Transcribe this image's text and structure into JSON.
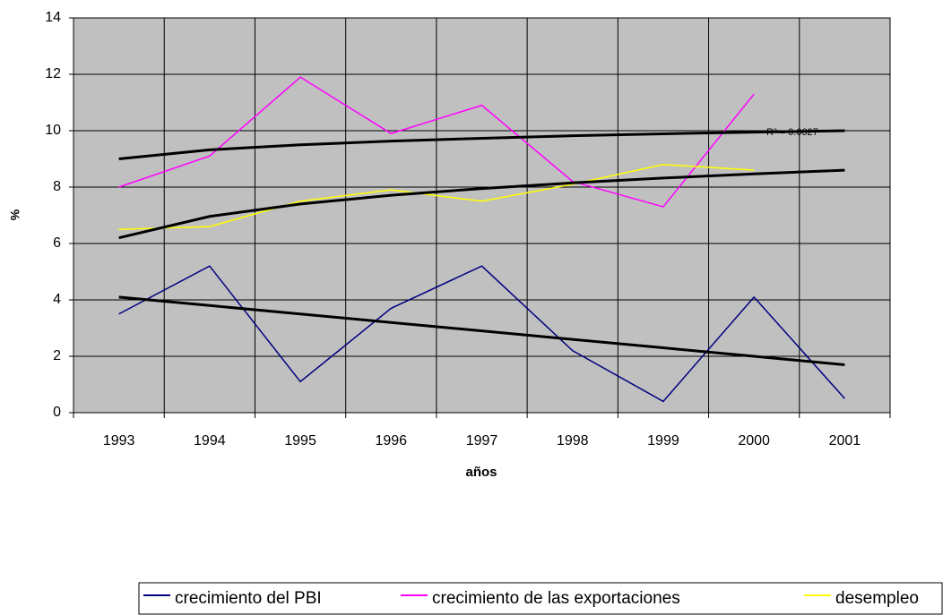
{
  "chart_data": {
    "type": "line",
    "categories": [
      "1993",
      "1994",
      "1995",
      "1996",
      "1997",
      "1998",
      "1999",
      "2000",
      "2001"
    ],
    "series": [
      {
        "name": "crecimiento del PBI",
        "color": "#000080",
        "values": [
          3.5,
          5.2,
          1.1,
          3.7,
          5.2,
          2.2,
          0.4,
          4.1,
          0.5
        ]
      },
      {
        "name": "crecimiento de las exportaciones",
        "color": "#ff00ff",
        "values": [
          8.0,
          9.1,
          11.9,
          9.9,
          10.9,
          8.2,
          7.3,
          11.3,
          null
        ]
      },
      {
        "name": "desempleo",
        "color": "#ffff00",
        "values": [
          6.5,
          6.6,
          7.5,
          7.9,
          7.5,
          8.1,
          8.8,
          8.6,
          null
        ]
      }
    ],
    "trendlines": [
      {
        "color": "#000000",
        "values": [
          4.1,
          3.8,
          3.5,
          3.2,
          2.9,
          2.6,
          2.3,
          2.0,
          1.7
        ]
      },
      {
        "color": "#000000",
        "values": [
          6.2,
          6.96,
          7.4,
          7.71,
          7.95,
          8.15,
          8.32,
          8.47,
          8.6
        ]
      },
      {
        "color": "#000000",
        "values": [
          9.0,
          9.32,
          9.5,
          9.63,
          9.73,
          9.82,
          9.89,
          9.95,
          10.0
        ]
      }
    ],
    "annotation": "R² = 0.0627",
    "y_label": "%",
    "x_label": "años",
    "ylim": [
      0,
      14
    ],
    "yticks": [
      0,
      2,
      4,
      6,
      8,
      10,
      12,
      14
    ],
    "grid": true,
    "background": "#c0c0c0"
  }
}
